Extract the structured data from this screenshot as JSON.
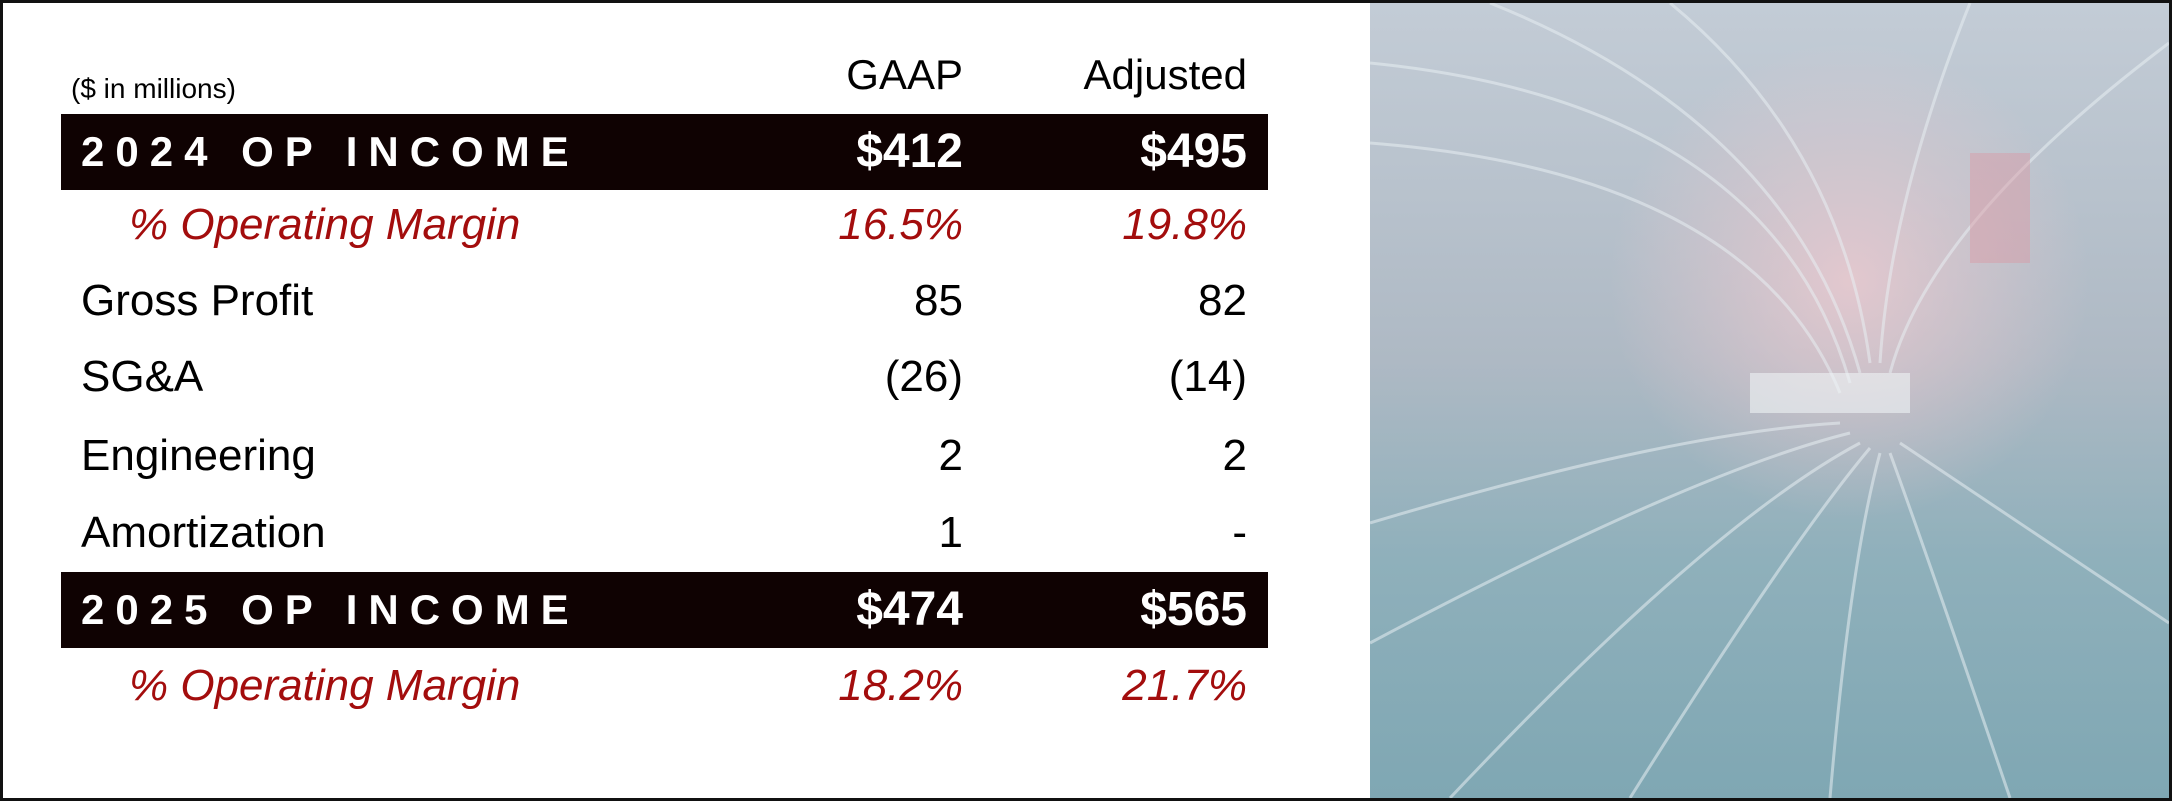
{
  "note": "($ in millions)",
  "columns": [
    "GAAP",
    "Adjusted"
  ],
  "rows": [
    {
      "label": "2024 OP INCOME",
      "values": [
        "$412",
        "$495"
      ]
    },
    {
      "label": "% Operating Margin",
      "values": [
        "16.5%",
        "19.8%"
      ]
    },
    {
      "label": "Gross Profit",
      "values": [
        "85",
        "82"
      ]
    },
    {
      "label": "SG&A",
      "values": [
        "(26)",
        "(14)"
      ]
    },
    {
      "label": "Engineering",
      "values": [
        "2",
        "2"
      ]
    },
    {
      "label": "Amortization",
      "values": [
        "1",
        "-"
      ]
    },
    {
      "label": "2025 OP INCOME",
      "values": [
        "$474",
        "$565"
      ]
    },
    {
      "label": "% Operating Margin",
      "values": [
        "18.2%",
        "21.7%"
      ]
    }
  ]
}
